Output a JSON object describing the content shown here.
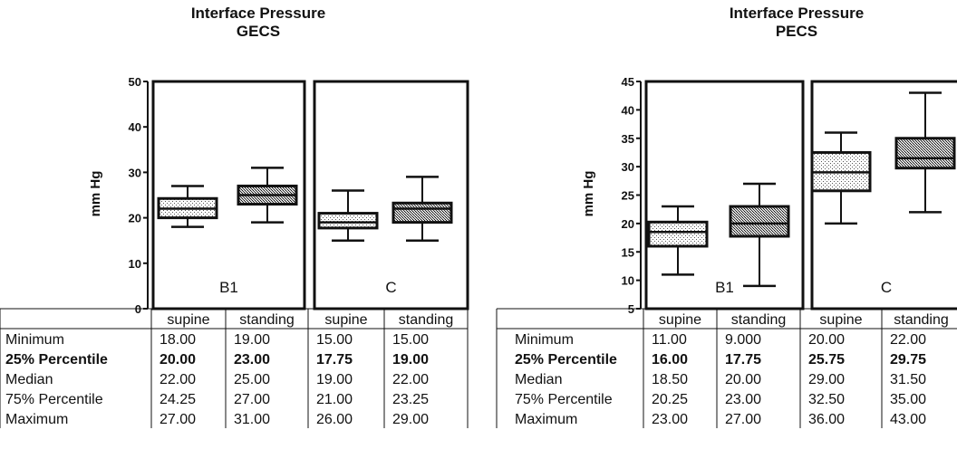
{
  "chart_data": [
    {
      "type": "box",
      "title": [
        "Interface Pressure",
        "GECS"
      ],
      "ylabel": "mm Hg",
      "ylim": [
        0,
        50
      ],
      "yticks": [
        0,
        10,
        20,
        30,
        40,
        50
      ],
      "groups": [
        "B1",
        "C"
      ],
      "columns": [
        "supine",
        "standing",
        "supine",
        "standing"
      ],
      "rows": [
        "Minimum",
        "25% Percentile",
        "Median",
        "75% Percentile",
        "Maximum"
      ],
      "bold_rows": [
        "25% Percentile"
      ],
      "table": [
        [
          "18.00",
          "19.00",
          "15.00",
          "15.00"
        ],
        [
          "20.00",
          "23.00",
          "17.75",
          "19.00"
        ],
        [
          "22.00",
          "25.00",
          "19.00",
          "22.00"
        ],
        [
          "24.25",
          "27.00",
          "21.00",
          "23.25"
        ],
        [
          "27.00",
          "31.00",
          "26.00",
          "29.00"
        ]
      ],
      "boxes": [
        {
          "group": "B1",
          "condition": "supine",
          "min": 18,
          "q1": 20,
          "median": 22,
          "q3": 24.25,
          "max": 27,
          "fill": "light"
        },
        {
          "group": "B1",
          "condition": "standing",
          "min": 19,
          "q1": 23,
          "median": 25,
          "q3": 27,
          "max": 31,
          "fill": "dark"
        },
        {
          "group": "C",
          "condition": "supine",
          "min": 15,
          "q1": 17.75,
          "median": 19,
          "q3": 21,
          "max": 26,
          "fill": "light"
        },
        {
          "group": "C",
          "condition": "standing",
          "min": 15,
          "q1": 19,
          "median": 22,
          "q3": 23.25,
          "max": 29,
          "fill": "dark"
        }
      ]
    },
    {
      "type": "box",
      "title": [
        "Interface Pressure",
        "PECS"
      ],
      "ylabel": "mm Hg",
      "ylim": [
        5,
        45
      ],
      "yticks": [
        5,
        10,
        15,
        20,
        25,
        30,
        35,
        40,
        45
      ],
      "groups": [
        "B1",
        "C"
      ],
      "columns": [
        "supine",
        "standing",
        "supine",
        "standing"
      ],
      "rows": [
        "Minimum",
        "25% Percentile",
        "Median",
        "75% Percentile",
        "Maximum"
      ],
      "bold_rows": [
        "25% Percentile"
      ],
      "table": [
        [
          "11.00",
          "9.000",
          "20.00",
          "22.00"
        ],
        [
          "16.00",
          "17.75",
          "25.75",
          "29.75"
        ],
        [
          "18.50",
          "20.00",
          "29.00",
          "31.50"
        ],
        [
          "20.25",
          "23.00",
          "32.50",
          "35.00"
        ],
        [
          "23.00",
          "27.00",
          "36.00",
          "43.00"
        ]
      ],
      "boxes": [
        {
          "group": "B1",
          "condition": "supine",
          "min": 11,
          "q1": 16,
          "median": 18.5,
          "q3": 20.25,
          "max": 23,
          "fill": "light"
        },
        {
          "group": "B1",
          "condition": "standing",
          "min": 9,
          "q1": 17.75,
          "median": 20,
          "q3": 23,
          "max": 27,
          "fill": "dark"
        },
        {
          "group": "C",
          "condition": "supine",
          "min": 20,
          "q1": 25.75,
          "median": 29,
          "q3": 32.5,
          "max": 36,
          "fill": "light"
        },
        {
          "group": "C",
          "condition": "standing",
          "min": 22,
          "q1": 29.75,
          "median": 31.5,
          "q3": 35,
          "max": 43,
          "fill": "dark"
        }
      ]
    }
  ]
}
